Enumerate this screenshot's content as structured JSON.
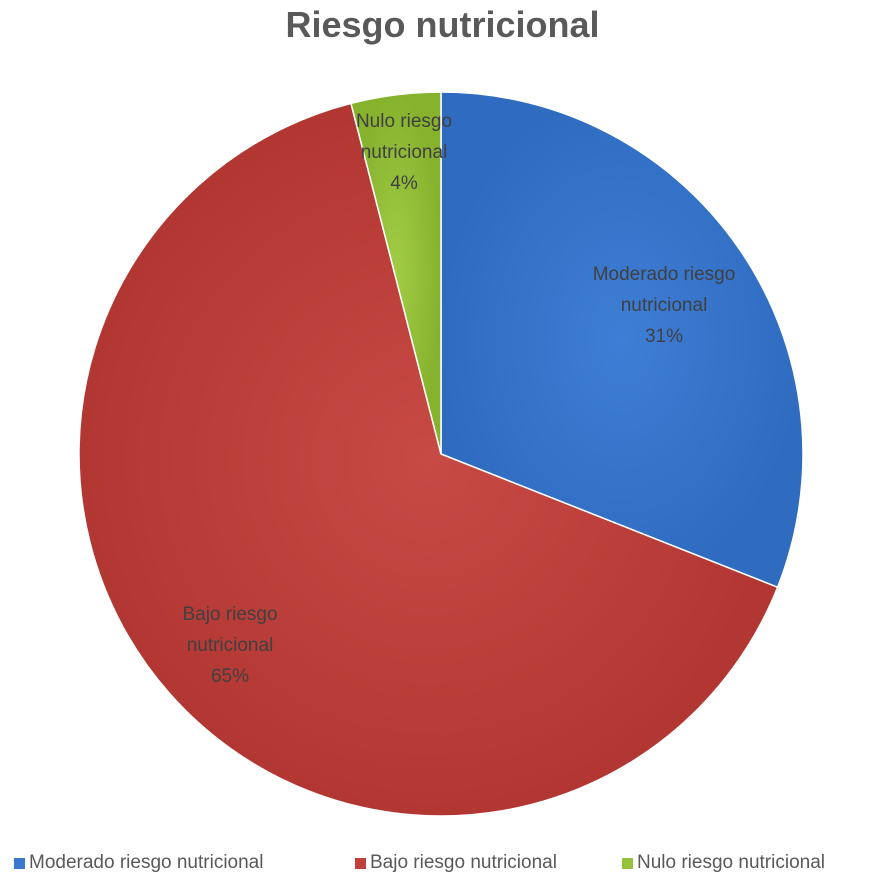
{
  "chart_data": {
    "type": "pie",
    "title": "Riesgo nutricional",
    "categories": [
      "Moderado riesgo nutricional",
      "Bajo riesgo nutricional",
      "Nulo riesgo nutricional"
    ],
    "values": [
      31,
      65,
      4
    ],
    "labels": [
      {
        "lines": [
          "Moderado riesgo",
          "nutricional",
          "31%"
        ]
      },
      {
        "lines": [
          "Bajo riesgo",
          "nutricional",
          "65%"
        ]
      },
      {
        "lines": [
          "Nulo riesgo",
          "nutricional",
          "4%"
        ]
      }
    ],
    "colors": [
      "#3a78cf",
      "#c0403c",
      "#95c23a"
    ],
    "legend_position": "bottom"
  }
}
